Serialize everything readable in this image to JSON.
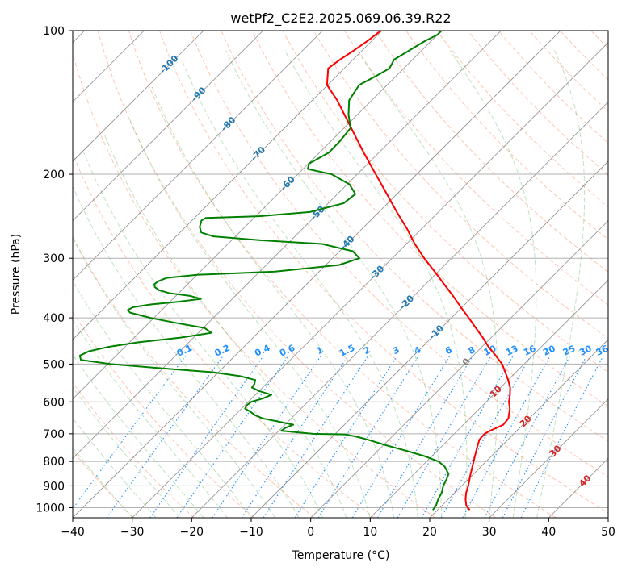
{
  "chart_data": {
    "type": "line",
    "title": "wetPf2_C2E2.2025.069.06.39.R22",
    "xlabel": "Temperature (°C)",
    "ylabel": "Pressure (hPa)",
    "xlim": [
      -40,
      50
    ],
    "ylim": [
      1050,
      100
    ],
    "y_scale": "log",
    "skew": "skew-T",
    "x_ticks": [
      -40,
      -30,
      -20,
      -10,
      0,
      10,
      20,
      30,
      40,
      50
    ],
    "x_tick_labels": [
      "−40",
      "−30",
      "−20",
      "−10",
      "0",
      "10",
      "20",
      "30",
      "40",
      "50"
    ],
    "y_ticks": [
      100,
      200,
      300,
      400,
      500,
      600,
      700,
      800,
      900,
      1000
    ],
    "y_tick_labels": [
      "100",
      "200",
      "300",
      "400",
      "500",
      "600",
      "700",
      "800",
      "900",
      "1000"
    ],
    "grid": true,
    "series": [
      {
        "color": "#ff0000",
        "data": [
          {
            "p": 1011,
            "t": 25.4
          },
          {
            "p": 990,
            "t": 24.1
          },
          {
            "p": 960,
            "t": 22.9
          },
          {
            "p": 930,
            "t": 21.9
          },
          {
            "p": 900,
            "t": 21.1
          },
          {
            "p": 850,
            "t": 19.5
          },
          {
            "p": 800,
            "t": 17.9
          },
          {
            "p": 750,
            "t": 16.2
          },
          {
            "p": 720,
            "t": 15.2
          },
          {
            "p": 700,
            "t": 15.1
          },
          {
            "p": 690,
            "t": 15.5
          },
          {
            "p": 670,
            "t": 16.7
          },
          {
            "p": 650,
            "t": 16.5
          },
          {
            "p": 620,
            "t": 15.1
          },
          {
            "p": 600,
            "t": 13.8
          },
          {
            "p": 580,
            "t": 12.8
          },
          {
            "p": 560,
            "t": 11.6
          },
          {
            "p": 540,
            "t": 10.0
          },
          {
            "p": 520,
            "t": 8.2
          },
          {
            "p": 500,
            "t": 6.3
          },
          {
            "p": 480,
            "t": 3.8
          },
          {
            "p": 460,
            "t": 1.1
          },
          {
            "p": 440,
            "t": -1.4
          },
          {
            "p": 420,
            "t": -4.2
          },
          {
            "p": 400,
            "t": -7.1
          },
          {
            "p": 380,
            "t": -10.2
          },
          {
            "p": 360,
            "t": -13.4
          },
          {
            "p": 340,
            "t": -16.9
          },
          {
            "p": 320,
            "t": -20.6
          },
          {
            "p": 300,
            "t": -24.6
          },
          {
            "p": 280,
            "t": -28.6
          },
          {
            "p": 260,
            "t": -32.5
          },
          {
            "p": 240,
            "t": -37.0
          },
          {
            "p": 220,
            "t": -41.7
          },
          {
            "p": 200,
            "t": -46.9
          },
          {
            "p": 180,
            "t": -52.6
          },
          {
            "p": 160,
            "t": -58.8
          },
          {
            "p": 140,
            "t": -65.8
          },
          {
            "p": 130,
            "t": -70.1
          },
          {
            "p": 120,
            "t": -72.7
          },
          {
            "p": 115,
            "t": -72.2
          },
          {
            "p": 110,
            "t": -71.4
          },
          {
            "p": 105,
            "t": -70.7
          },
          {
            "p": 100,
            "t": -70.2
          }
        ]
      },
      {
        "color": "#008000",
        "data": [
          {
            "p": 1011,
            "t": 19.2
          },
          {
            "p": 990,
            "t": 19.0
          },
          {
            "p": 960,
            "t": 18.3
          },
          {
            "p": 930,
            "t": 17.8
          },
          {
            "p": 900,
            "t": 16.9
          },
          {
            "p": 870,
            "t": 16.3
          },
          {
            "p": 850,
            "t": 15.8
          },
          {
            "p": 820,
            "t": 13.9
          },
          {
            "p": 800,
            "t": 12.0
          },
          {
            "p": 780,
            "t": 8.8
          },
          {
            "p": 760,
            "t": 4.8
          },
          {
            "p": 740,
            "t": 0.5
          },
          {
            "p": 720,
            "t": -3.6
          },
          {
            "p": 710,
            "t": -5.9
          },
          {
            "p": 702,
            "t": -8.3
          },
          {
            "p": 700,
            "t": -13.8
          },
          {
            "p": 690,
            "t": -19.6
          },
          {
            "p": 680,
            "t": -19.4
          },
          {
            "p": 670,
            "t": -18.6
          },
          {
            "p": 660,
            "t": -21.6
          },
          {
            "p": 650,
            "t": -24.8
          },
          {
            "p": 640,
            "t": -26.6
          },
          {
            "p": 630,
            "t": -27.9
          },
          {
            "p": 620,
            "t": -29.4
          },
          {
            "p": 610,
            "t": -29.7
          },
          {
            "p": 600,
            "t": -29.5
          },
          {
            "p": 590,
            "t": -28.1
          },
          {
            "p": 580,
            "t": -27.3
          },
          {
            "p": 570,
            "t": -29.9
          },
          {
            "p": 560,
            "t": -31.8
          },
          {
            "p": 550,
            "t": -32.0
          },
          {
            "p": 540,
            "t": -32.5
          },
          {
            "p": 530,
            "t": -35.7
          },
          {
            "p": 520,
            "t": -41.0
          },
          {
            "p": 510,
            "t": -50.5
          },
          {
            "p": 500,
            "t": -59.5
          },
          {
            "p": 490,
            "t": -65.2
          },
          {
            "p": 480,
            "t": -66.1
          },
          {
            "p": 470,
            "t": -65.3
          },
          {
            "p": 460,
            "t": -62.7
          },
          {
            "p": 450,
            "t": -58.5
          },
          {
            "p": 440,
            "t": -52.2
          },
          {
            "p": 430,
            "t": -47.8
          },
          {
            "p": 420,
            "t": -49.8
          },
          {
            "p": 410,
            "t": -55.4
          },
          {
            "p": 400,
            "t": -60.6
          },
          {
            "p": 390,
            "t": -64.9
          },
          {
            "p": 385,
            "t": -65.7
          },
          {
            "p": 380,
            "t": -65.3
          },
          {
            "p": 375,
            "t": -62.8
          },
          {
            "p": 370,
            "t": -58.6
          },
          {
            "p": 365,
            "t": -55.3
          },
          {
            "p": 360,
            "t": -57.5
          },
          {
            "p": 355,
            "t": -61.6
          },
          {
            "p": 350,
            "t": -63.8
          },
          {
            "p": 345,
            "t": -65.0
          },
          {
            "p": 340,
            "t": -65.6
          },
          {
            "p": 335,
            "t": -65.4
          },
          {
            "p": 330,
            "t": -64.6
          },
          {
            "p": 325,
            "t": -60.0
          },
          {
            "p": 320,
            "t": -47.4
          },
          {
            "p": 310,
            "t": -37.8
          },
          {
            "p": 300,
            "t": -35.5
          },
          {
            "p": 290,
            "t": -37.8
          },
          {
            "p": 280,
            "t": -44.2
          },
          {
            "p": 275,
            "t": -55.2
          },
          {
            "p": 270,
            "t": -63.7
          },
          {
            "p": 265,
            "t": -66.4
          },
          {
            "p": 258,
            "t": -67.6
          },
          {
            "p": 250,
            "t": -68.4
          },
          {
            "p": 247,
            "t": -68.1
          },
          {
            "p": 245,
            "t": -59.4
          },
          {
            "p": 240,
            "t": -51.6
          },
          {
            "p": 230,
            "t": -47.4
          },
          {
            "p": 220,
            "t": -47.0
          },
          {
            "p": 210,
            "t": -49.6
          },
          {
            "p": 200,
            "t": -54.3
          },
          {
            "p": 195,
            "t": -59.2
          },
          {
            "p": 190,
            "t": -59.9
          },
          {
            "p": 180,
            "t": -58.4
          },
          {
            "p": 170,
            "t": -58.5
          },
          {
            "p": 160,
            "t": -58.9
          },
          {
            "p": 150,
            "t": -61.5
          },
          {
            "p": 140,
            "t": -63.8
          },
          {
            "p": 130,
            "t": -64.7
          },
          {
            "p": 125,
            "t": -63.5
          },
          {
            "p": 120,
            "t": -62.4
          },
          {
            "p": 115,
            "t": -63.1
          },
          {
            "p": 110,
            "t": -62.1
          },
          {
            "p": 105,
            "t": -61.0
          },
          {
            "p": 102,
            "t": -60.0
          },
          {
            "p": 100,
            "t": -60.0
          }
        ]
      }
    ],
    "isotherm_labels": {
      "values": [
        -100,
        -90,
        -80,
        -70,
        -60,
        -50,
        -40,
        -30,
        -20,
        -10,
        0,
        10,
        20,
        30,
        40
      ],
      "labels": [
        "-100",
        "-90",
        "-80",
        "-70",
        "-60",
        "-50",
        "-40",
        "-30",
        "-20",
        "-10",
        "0",
        "10",
        "20",
        "30",
        "40"
      ],
      "colors": {
        "cold": "#1f77b4",
        "zero": "#808080",
        "warm": "#d62728"
      }
    },
    "mixing_ratio_lines": {
      "color": "#1e90ff",
      "values": [
        0.1,
        0.2,
        0.4,
        0.6,
        1,
        1.5,
        2,
        3,
        4,
        6,
        8,
        10,
        13,
        16,
        20,
        25,
        30,
        36
      ],
      "labels": [
        "0.1",
        "0.2",
        "0.4",
        "0.6",
        "1",
        "1.5",
        "2",
        "3",
        "4",
        "6",
        "8",
        "10",
        "13",
        "16",
        "20",
        "25",
        "30",
        "36"
      ],
      "label_pressure": 480
    },
    "dry_adiabat_color": "#ff7f50",
    "moist_adiabat_color": "#2ca02c"
  }
}
